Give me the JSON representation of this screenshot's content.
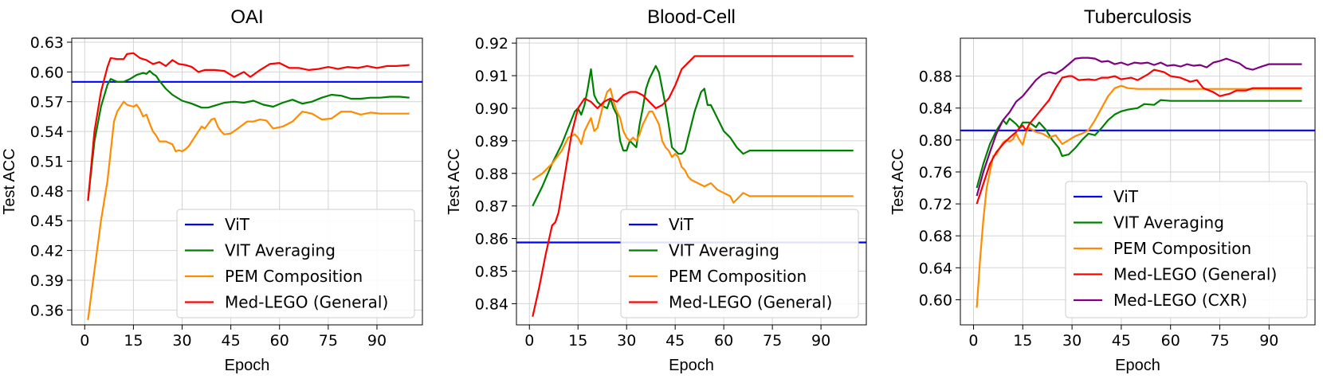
{
  "chart_data": [
    {
      "type": "line",
      "title": "OAI",
      "xlabel": "Epoch",
      "ylabel": "Test ACC",
      "xlim": [
        -4,
        104
      ],
      "ylim": [
        0.345,
        0.634
      ],
      "xticks": [
        0,
        15,
        30,
        45,
        60,
        75,
        90
      ],
      "yticks": [
        0.36,
        0.39,
        0.42,
        0.45,
        0.48,
        0.51,
        0.54,
        0.57,
        0.6,
        0.63
      ],
      "ytick_labels": [
        "0.36",
        "0.39",
        "0.42",
        "0.45",
        "0.48",
        "0.51",
        "0.54",
        "0.57",
        "0.60",
        "0.63"
      ],
      "grid": true,
      "legend_position": "lower-right",
      "series": [
        {
          "name": "ViT",
          "color": "#0000ff",
          "hline": 0.59
        },
        {
          "name": "VIT Averaging",
          "color": "#008000",
          "x": [
            1,
            3,
            5,
            7,
            8,
            10,
            12,
            14,
            16,
            18,
            19,
            20,
            21,
            22,
            23,
            25,
            27,
            30,
            33,
            36,
            38,
            40,
            43,
            46,
            49,
            52,
            55,
            58,
            61,
            64,
            67,
            70,
            73,
            76,
            79,
            82,
            85,
            88,
            91,
            94,
            97,
            100
          ],
          "y": [
            0.47,
            0.53,
            0.565,
            0.587,
            0.593,
            0.59,
            0.59,
            0.593,
            0.597,
            0.599,
            0.598,
            0.601,
            0.598,
            0.596,
            0.591,
            0.583,
            0.577,
            0.571,
            0.568,
            0.564,
            0.564,
            0.566,
            0.569,
            0.57,
            0.569,
            0.571,
            0.567,
            0.565,
            0.569,
            0.572,
            0.568,
            0.57,
            0.574,
            0.577,
            0.576,
            0.573,
            0.573,
            0.574,
            0.574,
            0.575,
            0.575,
            0.574
          ]
        },
        {
          "name": "PEM Composition",
          "color": "#ff8c00",
          "x": [
            1,
            3,
            5,
            7,
            9,
            10,
            12,
            13,
            15,
            16,
            17,
            18,
            19,
            20,
            21,
            22,
            23,
            25,
            27,
            28,
            29,
            30,
            31,
            32,
            33,
            34,
            35,
            36,
            37,
            39,
            40,
            41,
            42,
            43,
            45,
            48,
            50,
            52,
            54,
            56,
            58,
            61,
            64,
            67,
            70,
            73,
            76,
            79,
            82,
            85,
            88,
            91,
            94,
            97,
            100
          ],
          "y": [
            0.35,
            0.4,
            0.45,
            0.49,
            0.55,
            0.56,
            0.57,
            0.567,
            0.565,
            0.567,
            0.562,
            0.555,
            0.557,
            0.548,
            0.54,
            0.536,
            0.53,
            0.53,
            0.527,
            0.52,
            0.521,
            0.52,
            0.522,
            0.525,
            0.53,
            0.535,
            0.54,
            0.545,
            0.543,
            0.552,
            0.553,
            0.545,
            0.54,
            0.537,
            0.538,
            0.545,
            0.55,
            0.55,
            0.552,
            0.551,
            0.543,
            0.545,
            0.55,
            0.56,
            0.558,
            0.552,
            0.553,
            0.56,
            0.56,
            0.557,
            0.559,
            0.558,
            0.558,
            0.558,
            0.558
          ]
        },
        {
          "name": "Med-LEGO (General)",
          "color": "#ff0000",
          "x": [
            1,
            3,
            5,
            7,
            8,
            10,
            12,
            13,
            15,
            17,
            19,
            21,
            23,
            25,
            27,
            29,
            31,
            33,
            35,
            37,
            40,
            43,
            46,
            49,
            51,
            54,
            57,
            60,
            63,
            66,
            69,
            72,
            75,
            78,
            81,
            84,
            87,
            90,
            93,
            96,
            100
          ],
          "y": [
            0.47,
            0.54,
            0.58,
            0.605,
            0.614,
            0.613,
            0.613,
            0.618,
            0.619,
            0.614,
            0.612,
            0.608,
            0.61,
            0.606,
            0.612,
            0.608,
            0.607,
            0.605,
            0.6,
            0.602,
            0.602,
            0.601,
            0.595,
            0.6,
            0.595,
            0.602,
            0.608,
            0.609,
            0.604,
            0.604,
            0.602,
            0.603,
            0.605,
            0.603,
            0.605,
            0.604,
            0.606,
            0.604,
            0.606,
            0.606,
            0.607
          ]
        }
      ]
    },
    {
      "type": "line",
      "title": "Blood-Cell",
      "xlabel": "Epoch",
      "ylabel": "Test ACC",
      "xlim": [
        -4,
        104
      ],
      "ylim": [
        0.8335,
        0.9215
      ],
      "xticks": [
        0,
        15,
        30,
        45,
        60,
        75,
        90
      ],
      "yticks": [
        0.84,
        0.85,
        0.86,
        0.87,
        0.88,
        0.89,
        0.9,
        0.91,
        0.92
      ],
      "ytick_labels": [
        "0.84",
        "0.85",
        "0.86",
        "0.87",
        "0.88",
        "0.89",
        "0.90",
        "0.91",
        "0.92"
      ],
      "grid": true,
      "legend_position": "lower-right",
      "series": [
        {
          "name": "ViT",
          "color": "#0000ff",
          "hline": 0.8588
        },
        {
          "name": "VIT Averaging",
          "color": "#008000",
          "x": [
            1,
            4,
            7,
            10,
            12,
            14,
            15,
            16,
            17,
            18,
            19,
            20,
            21,
            22,
            24,
            25,
            26,
            27,
            28,
            29,
            30,
            31,
            32,
            33,
            34,
            35,
            36,
            37,
            38,
            39,
            40,
            41,
            42,
            43,
            44,
            45,
            46,
            47,
            48,
            49,
            50,
            51,
            52,
            53,
            54,
            55,
            56,
            57,
            58,
            59,
            60,
            62,
            64,
            66,
            68,
            70,
            100
          ],
          "y": [
            0.87,
            0.876,
            0.883,
            0.889,
            0.894,
            0.899,
            0.9,
            0.898,
            0.901,
            0.906,
            0.912,
            0.904,
            0.902,
            0.901,
            0.9,
            0.903,
            0.9,
            0.898,
            0.89,
            0.887,
            0.887,
            0.89,
            0.889,
            0.888,
            0.895,
            0.9,
            0.906,
            0.909,
            0.911,
            0.913,
            0.911,
            0.906,
            0.901,
            0.895,
            0.888,
            0.887,
            0.886,
            0.886,
            0.887,
            0.891,
            0.895,
            0.899,
            0.902,
            0.905,
            0.906,
            0.901,
            0.901,
            0.899,
            0.897,
            0.895,
            0.893,
            0.891,
            0.888,
            0.886,
            0.887,
            0.887,
            0.887
          ]
        },
        {
          "name": "PEM Composition",
          "color": "#ff8c00",
          "x": [
            1,
            4,
            7,
            10,
            12,
            14,
            15,
            16,
            17,
            18,
            19,
            20,
            21,
            22,
            23,
            24,
            25,
            26,
            27,
            28,
            29,
            30,
            31,
            32,
            33,
            34,
            35,
            36,
            37,
            38,
            39,
            40,
            41,
            42,
            43,
            44,
            45,
            46,
            47,
            48,
            49,
            50,
            52,
            54,
            56,
            58,
            60,
            62,
            63,
            64,
            66,
            68,
            70,
            100
          ],
          "y": [
            0.878,
            0.88,
            0.883,
            0.887,
            0.891,
            0.892,
            0.891,
            0.889,
            0.893,
            0.895,
            0.897,
            0.893,
            0.894,
            0.898,
            0.902,
            0.905,
            0.906,
            0.902,
            0.899,
            0.897,
            0.893,
            0.891,
            0.89,
            0.891,
            0.89,
            0.892,
            0.895,
            0.897,
            0.899,
            0.899,
            0.897,
            0.895,
            0.89,
            0.888,
            0.887,
            0.885,
            0.886,
            0.885,
            0.882,
            0.881,
            0.879,
            0.878,
            0.877,
            0.876,
            0.877,
            0.875,
            0.874,
            0.873,
            0.871,
            0.872,
            0.874,
            0.873,
            0.873,
            0.873
          ]
        },
        {
          "name": "Med-LEGO (General)",
          "color": "#ff0000",
          "x": [
            1,
            3,
            5,
            7,
            8,
            9,
            11,
            13,
            15,
            17,
            19,
            21,
            23,
            25,
            27,
            29,
            31,
            33,
            35,
            37,
            39,
            41,
            43,
            45,
            47,
            49,
            51,
            53,
            55,
            57,
            60,
            65,
            70,
            100
          ],
          "y": [
            0.836,
            0.845,
            0.855,
            0.864,
            0.865,
            0.868,
            0.88,
            0.892,
            0.9,
            0.903,
            0.902,
            0.9,
            0.902,
            0.903,
            0.902,
            0.904,
            0.905,
            0.905,
            0.904,
            0.902,
            0.9,
            0.901,
            0.903,
            0.907,
            0.912,
            0.914,
            0.916,
            0.916,
            0.916,
            0.916,
            0.916,
            0.916,
            0.916,
            0.916
          ]
        }
      ]
    },
    {
      "type": "line",
      "title": "Tuberculosis",
      "xlabel": "Epoch",
      "ylabel": "Test ACC",
      "xlim": [
        -4,
        104
      ],
      "ylim": [
        0.5685,
        0.9275
      ],
      "xticks": [
        0,
        15,
        30,
        45,
        60,
        75,
        90
      ],
      "yticks": [
        0.6,
        0.64,
        0.68,
        0.72,
        0.76,
        0.8,
        0.84,
        0.88
      ],
      "ytick_labels": [
        "0.60",
        "0.64",
        "0.68",
        "0.72",
        "0.76",
        "0.80",
        "0.84",
        "0.88"
      ],
      "grid": true,
      "legend_position": "lower-right",
      "series": [
        {
          "name": "ViT",
          "color": "#0000ff",
          "hline": 0.812
        },
        {
          "name": "VIT Averaging",
          "color": "#008000",
          "x": [
            1,
            3,
            5,
            7,
            9,
            10,
            11,
            13,
            14,
            15,
            17,
            19,
            20,
            22,
            24,
            26,
            27,
            29,
            31,
            33,
            35,
            37,
            39,
            41,
            43,
            45,
            47,
            50,
            52,
            55,
            57,
            60,
            65,
            70,
            100
          ],
          "y": [
            0.74,
            0.77,
            0.795,
            0.812,
            0.825,
            0.82,
            0.827,
            0.82,
            0.815,
            0.822,
            0.822,
            0.816,
            0.822,
            0.813,
            0.8,
            0.79,
            0.78,
            0.782,
            0.79,
            0.8,
            0.808,
            0.806,
            0.815,
            0.825,
            0.832,
            0.836,
            0.838,
            0.84,
            0.845,
            0.844,
            0.85,
            0.849,
            0.849,
            0.849,
            0.849
          ]
        },
        {
          "name": "PEM Composition",
          "color": "#ff8c00",
          "x": [
            1,
            2,
            3,
            4,
            5,
            6,
            7,
            8,
            9,
            10,
            11,
            12,
            13,
            14,
            15,
            16,
            17,
            19,
            21,
            23,
            25,
            27,
            29,
            31,
            33,
            35,
            37,
            39,
            41,
            43,
            45,
            47,
            50,
            55,
            60,
            65,
            70,
            100
          ],
          "y": [
            0.59,
            0.65,
            0.7,
            0.74,
            0.76,
            0.78,
            0.782,
            0.79,
            0.797,
            0.8,
            0.798,
            0.801,
            0.808,
            0.8,
            0.794,
            0.81,
            0.815,
            0.81,
            0.808,
            0.803,
            0.806,
            0.795,
            0.8,
            0.805,
            0.808,
            0.812,
            0.825,
            0.84,
            0.855,
            0.865,
            0.868,
            0.865,
            0.864,
            0.864,
            0.864,
            0.864,
            0.864,
            0.864
          ]
        },
        {
          "name": "Med-LEGO (General)",
          "color": "#ff0000",
          "x": [
            1,
            3,
            5,
            7,
            9,
            11,
            13,
            14,
            15,
            16,
            17,
            18,
            19,
            21,
            23,
            25,
            27,
            29,
            30,
            32,
            35,
            37,
            39,
            41,
            43,
            45,
            48,
            50,
            53,
            55,
            58,
            60,
            63,
            66,
            68,
            70,
            73,
            75,
            78,
            80,
            83,
            85,
            100
          ],
          "y": [
            0.72,
            0.745,
            0.77,
            0.785,
            0.795,
            0.803,
            0.81,
            0.815,
            0.818,
            0.812,
            0.82,
            0.825,
            0.83,
            0.84,
            0.85,
            0.865,
            0.878,
            0.88,
            0.88,
            0.875,
            0.876,
            0.875,
            0.878,
            0.878,
            0.88,
            0.876,
            0.878,
            0.875,
            0.882,
            0.888,
            0.885,
            0.88,
            0.878,
            0.873,
            0.875,
            0.865,
            0.86,
            0.855,
            0.858,
            0.862,
            0.862,
            0.865,
            0.865
          ]
        },
        {
          "name": "Med-LEGO (CXR)",
          "color": "#800080",
          "x": [
            1,
            3,
            5,
            7,
            9,
            11,
            13,
            15,
            17,
            19,
            21,
            23,
            25,
            27,
            29,
            31,
            33,
            35,
            37,
            39,
            41,
            43,
            45,
            47,
            49,
            51,
            53,
            55,
            57,
            59,
            61,
            63,
            65,
            67,
            69,
            71,
            73,
            75,
            77,
            79,
            81,
            83,
            85,
            87,
            90,
            95,
            100
          ],
          "y": [
            0.73,
            0.76,
            0.785,
            0.808,
            0.825,
            0.835,
            0.848,
            0.855,
            0.865,
            0.875,
            0.882,
            0.885,
            0.883,
            0.888,
            0.895,
            0.902,
            0.903,
            0.903,
            0.902,
            0.898,
            0.899,
            0.895,
            0.897,
            0.894,
            0.897,
            0.896,
            0.897,
            0.894,
            0.897,
            0.893,
            0.894,
            0.892,
            0.895,
            0.893,
            0.894,
            0.891,
            0.897,
            0.899,
            0.902,
            0.899,
            0.896,
            0.89,
            0.888,
            0.891,
            0.895,
            0.895,
            0.895
          ]
        }
      ]
    }
  ]
}
